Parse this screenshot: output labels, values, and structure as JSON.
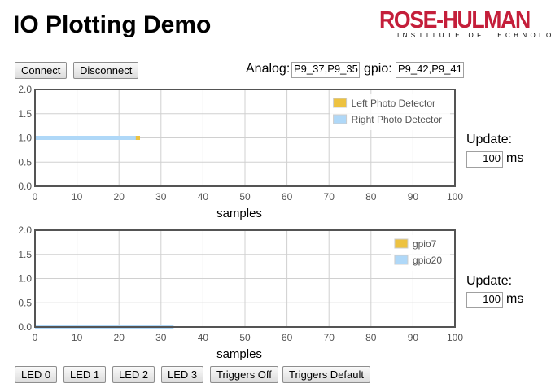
{
  "header": {
    "title": "IO Plotting Demo",
    "logo_main": "ROSE-HULMAN",
    "logo_sub": "INSTITUTE OF TECHNOLOGY"
  },
  "toolbar": {
    "connect_label": "Connect",
    "disconnect_label": "Disconnect",
    "analog_label": "Analog:",
    "analog_value": "P9_37,P9_35",
    "gpio_label": "gpio:",
    "gpio_value": "P9_42,P9_41"
  },
  "plot1_update": {
    "label": "Update:",
    "value": "100",
    "unit": "ms"
  },
  "plot2_update": {
    "label": "Update:",
    "value": "100",
    "unit": "ms"
  },
  "bottom_buttons": [
    "LED 0",
    "LED 1",
    "LED 2",
    "LED 3",
    "Triggers Off",
    "Triggers Default"
  ],
  "colors": {
    "series1": "#edc240",
    "series2": "#afd8f8",
    "border": "#545454",
    "grid": "#d0d0d0"
  },
  "chart_data": [
    {
      "type": "line",
      "xlabel": "samples",
      "ylabel": "",
      "xlim": [
        0,
        100
      ],
      "ylim": [
        0,
        2
      ],
      "xticks": [
        "0",
        "10",
        "20",
        "30",
        "40",
        "50",
        "60",
        "70",
        "80",
        "90",
        "100"
      ],
      "yticks": [
        "0.0",
        "0.5",
        "1.0",
        "1.5",
        "2.0"
      ],
      "grid": true,
      "legend_position": "top-right",
      "series": [
        {
          "name": "Left Photo Detector",
          "color": "#edc240",
          "x": [
            0,
            25
          ],
          "y": [
            1.0,
            1.0
          ]
        },
        {
          "name": "Right Photo Detector",
          "color": "#afd8f8",
          "x": [
            0,
            24
          ],
          "y": [
            1.0,
            1.0
          ]
        }
      ]
    },
    {
      "type": "line",
      "xlabel": "samples",
      "ylabel": "",
      "xlim": [
        0,
        100
      ],
      "ylim": [
        0,
        2
      ],
      "xticks": [
        "0",
        "10",
        "20",
        "30",
        "40",
        "50",
        "60",
        "70",
        "80",
        "90",
        "100"
      ],
      "yticks": [
        "0.0",
        "0.5",
        "1.0",
        "1.5",
        "2.0"
      ],
      "grid": true,
      "legend_position": "top-right",
      "series": [
        {
          "name": "gpio7",
          "color": "#edc240",
          "x": [
            0,
            32
          ],
          "y": [
            0.0,
            0.0
          ]
        },
        {
          "name": "gpio20",
          "color": "#afd8f8",
          "x": [
            0,
            33
          ],
          "y": [
            0.0,
            0.0
          ]
        }
      ]
    }
  ]
}
